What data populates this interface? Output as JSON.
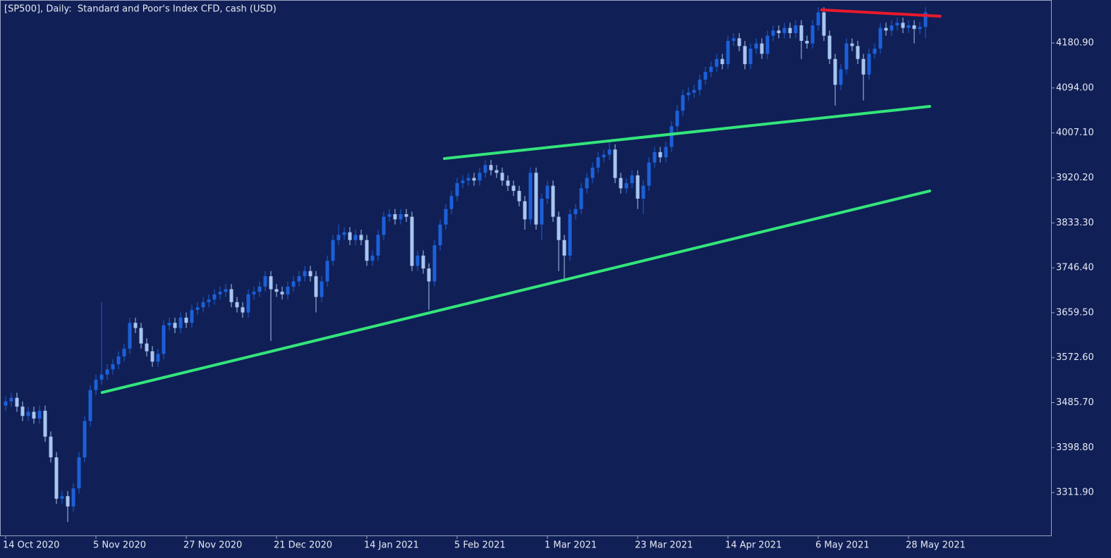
{
  "chart_data": {
    "type": "candlestick",
    "title": "[SP500], Daily:  Standard and Poor's Index CFD, cash (USD)",
    "up_color": "#1c60d8",
    "down_color": "#a8c6f0",
    "categories": [
      "14 Oct 2020",
      null,
      null,
      null,
      null,
      null,
      null,
      null,
      null,
      null,
      null,
      null,
      null,
      null,
      null,
      null,
      "5 Nov 2020",
      null,
      null,
      null,
      null,
      null,
      null,
      null,
      null,
      null,
      null,
      null,
      null,
      null,
      null,
      null,
      "27 Nov 2020",
      null,
      null,
      null,
      null,
      null,
      null,
      null,
      null,
      null,
      null,
      null,
      null,
      null,
      null,
      null,
      "21 Dec 2020",
      null,
      null,
      null,
      null,
      null,
      null,
      null,
      null,
      null,
      null,
      null,
      null,
      null,
      null,
      null,
      "14 Jan 2021",
      null,
      null,
      null,
      null,
      null,
      null,
      null,
      null,
      null,
      null,
      null,
      null,
      null,
      null,
      null,
      "5 Feb 2021",
      null,
      null,
      null,
      null,
      null,
      null,
      null,
      null,
      null,
      null,
      null,
      null,
      null,
      null,
      null,
      "1 Mar 2021",
      null,
      null,
      null,
      null,
      null,
      null,
      null,
      null,
      null,
      null,
      null,
      null,
      null,
      null,
      null,
      "23 Mar 2021",
      null,
      null,
      null,
      null,
      null,
      null,
      null,
      null,
      null,
      null,
      null,
      null,
      null,
      null,
      null,
      "14 Apr 2021",
      null,
      null,
      null,
      null,
      null,
      null,
      null,
      null,
      null,
      null,
      null,
      null,
      null,
      null,
      null,
      "6 May 2021",
      null,
      null,
      null,
      null,
      null,
      null,
      null,
      null,
      null,
      null,
      null,
      null,
      null,
      null,
      null,
      "28 May 2021",
      null,
      null,
      null
    ],
    "ohlc": {
      "open": [
        3480,
        3488,
        3495,
        3478,
        3460,
        3468,
        3455,
        3470,
        3420,
        3380,
        3300,
        3305,
        3285,
        3320,
        3380,
        3450,
        3510,
        3530,
        3540,
        3550,
        3560,
        3575,
        3590,
        3640,
        3630,
        3600,
        3585,
        3565,
        3580,
        3635,
        3640,
        3630,
        3650,
        3640,
        3665,
        3670,
        3680,
        3685,
        3695,
        3700,
        3705,
        3680,
        3670,
        3660,
        3695,
        3700,
        3710,
        3730,
        3705,
        3700,
        3695,
        3710,
        3720,
        3730,
        3740,
        3730,
        3690,
        3720,
        3760,
        3800,
        3810,
        3815,
        3800,
        3810,
        3800,
        3760,
        3770,
        3810,
        3845,
        3850,
        3840,
        3850,
        3845,
        3750,
        3770,
        3745,
        3720,
        3790,
        3830,
        3860,
        3885,
        3910,
        3915,
        3920,
        3915,
        3930,
        3945,
        3935,
        3930,
        3915,
        3905,
        3895,
        3875,
        3840,
        3930,
        3830,
        3880,
        3905,
        3845,
        3800,
        3770,
        3850,
        3860,
        3900,
        3920,
        3940,
        3960,
        3965,
        3975,
        3920,
        3900,
        3910,
        3925,
        3880,
        3905,
        3950,
        3970,
        3960,
        3980,
        4020,
        4050,
        4080,
        4085,
        4090,
        4110,
        4125,
        4135,
        4150,
        4140,
        4185,
        4190,
        4175,
        4140,
        4170,
        4180,
        4160,
        4195,
        4205,
        4200,
        4210,
        4200,
        4215,
        4185,
        4180,
        4215,
        4240,
        4195,
        4150,
        4100,
        4130,
        4180,
        4175,
        4150,
        4120,
        4160,
        4170,
        4210,
        4205,
        4215,
        4220,
        4210,
        4215,
        4208,
        4212
      ],
      "high": [
        3498,
        3505,
        3505,
        3488,
        3478,
        3478,
        3480,
        3480,
        3430,
        3390,
        3315,
        3315,
        3330,
        3390,
        3460,
        3520,
        3540,
        3680,
        3560,
        3570,
        3585,
        3600,
        3650,
        3650,
        3640,
        3610,
        3595,
        3590,
        3645,
        3650,
        3650,
        3660,
        3660,
        3675,
        3680,
        3690,
        3695,
        3705,
        3710,
        3715,
        3715,
        3690,
        3680,
        3705,
        3710,
        3720,
        3740,
        3740,
        3715,
        3710,
        3720,
        3730,
        3740,
        3750,
        3750,
        3740,
        3730,
        3770,
        3810,
        3830,
        3825,
        3825,
        3820,
        3820,
        3810,
        3780,
        3820,
        3855,
        3860,
        3860,
        3860,
        3860,
        3855,
        3780,
        3780,
        3755,
        3800,
        3840,
        3870,
        3895,
        3920,
        3925,
        3930,
        3930,
        3940,
        3955,
        3955,
        3945,
        3940,
        3925,
        3915,
        3905,
        3885,
        3940,
        3940,
        3890,
        3915,
        3915,
        3855,
        3810,
        3860,
        3870,
        3910,
        3930,
        3950,
        3970,
        3975,
        3990,
        3985,
        3930,
        3920,
        3935,
        3935,
        3915,
        3960,
        3980,
        3980,
        3990,
        4030,
        4060,
        4090,
        4095,
        4100,
        4120,
        4135,
        4145,
        4160,
        4160,
        4195,
        4200,
        4200,
        4185,
        4180,
        4190,
        4190,
        4205,
        4215,
        4215,
        4220,
        4220,
        4225,
        4225,
        4195,
        4225,
        4250,
        4250,
        4205,
        4160,
        4140,
        4190,
        4190,
        4185,
        4160,
        4170,
        4180,
        4220,
        4220,
        4225,
        4230,
        4230,
        4225,
        4225,
        4222,
        4250
      ],
      "low": [
        3470,
        3478,
        3468,
        3450,
        3450,
        3445,
        3445,
        3410,
        3370,
        3290,
        3290,
        3255,
        3275,
        3310,
        3370,
        3440,
        3500,
        3520,
        3530,
        3540,
        3550,
        3565,
        3580,
        3620,
        3590,
        3575,
        3555,
        3555,
        3570,
        3625,
        3620,
        3620,
        3630,
        3630,
        3655,
        3660,
        3670,
        3675,
        3685,
        3690,
        3670,
        3660,
        3650,
        3650,
        3685,
        3690,
        3700,
        3605,
        3690,
        3685,
        3685,
        3700,
        3710,
        3720,
        3720,
        3660,
        3680,
        3710,
        3750,
        3790,
        3800,
        3790,
        3790,
        3790,
        3750,
        3750,
        3760,
        3800,
        3835,
        3830,
        3830,
        3835,
        3740,
        3740,
        3735,
        3665,
        3710,
        3780,
        3820,
        3850,
        3875,
        3900,
        3905,
        3905,
        3905,
        3920,
        3925,
        3920,
        3905,
        3895,
        3885,
        3865,
        3820,
        3830,
        3820,
        3800,
        3870,
        3835,
        3740,
        3725,
        3760,
        3840,
        3850,
        3890,
        3910,
        3930,
        3950,
        3955,
        3910,
        3890,
        3890,
        3900,
        3860,
        3850,
        3895,
        3940,
        3950,
        3950,
        3970,
        4010,
        4040,
        4070,
        4075,
        4080,
        4100,
        4115,
        4125,
        4130,
        4130,
        4175,
        4165,
        4130,
        4130,
        4160,
        4150,
        4150,
        4185,
        4190,
        4190,
        4190,
        4190,
        4150,
        4170,
        4170,
        4205,
        4185,
        4140,
        4060,
        4090,
        4120,
        4165,
        4140,
        4070,
        4110,
        4150,
        4160,
        4195,
        4195,
        4205,
        4200,
        4200,
        4180,
        4198,
        4190
      ],
      "close": [
        3488,
        3495,
        3478,
        3460,
        3468,
        3455,
        3470,
        3420,
        3380,
        3300,
        3305,
        3285,
        3320,
        3380,
        3450,
        3510,
        3530,
        3540,
        3550,
        3560,
        3575,
        3590,
        3640,
        3630,
        3600,
        3585,
        3565,
        3580,
        3635,
        3640,
        3630,
        3650,
        3640,
        3665,
        3670,
        3680,
        3685,
        3695,
        3700,
        3705,
        3680,
        3670,
        3660,
        3695,
        3700,
        3710,
        3730,
        3705,
        3700,
        3695,
        3710,
        3720,
        3730,
        3740,
        3730,
        3690,
        3720,
        3760,
        3800,
        3810,
        3815,
        3800,
        3810,
        3800,
        3760,
        3770,
        3810,
        3845,
        3850,
        3840,
        3850,
        3845,
        3750,
        3770,
        3745,
        3720,
        3790,
        3830,
        3860,
        3885,
        3910,
        3915,
        3920,
        3915,
        3930,
        3945,
        3935,
        3930,
        3915,
        3905,
        3895,
        3875,
        3840,
        3930,
        3830,
        3880,
        3905,
        3845,
        3800,
        3770,
        3850,
        3860,
        3900,
        3920,
        3940,
        3960,
        3965,
        3975,
        3920,
        3900,
        3910,
        3925,
        3880,
        3905,
        3950,
        3970,
        3960,
        3980,
        4020,
        4050,
        4080,
        4085,
        4090,
        4110,
        4125,
        4135,
        4150,
        4140,
        4185,
        4190,
        4175,
        4140,
        4170,
        4180,
        4160,
        4195,
        4205,
        4200,
        4210,
        4200,
        4215,
        4185,
        4180,
        4215,
        4240,
        4195,
        4150,
        4100,
        4130,
        4180,
        4175,
        4150,
        4120,
        4160,
        4170,
        4210,
        4205,
        4215,
        4220,
        4210,
        4215,
        4208,
        4212,
        4240
      ]
    },
    "ylim": [
      3229,
      4264
    ],
    "yticks": [
      {
        "value": 3311.9,
        "label": "3311.90"
      },
      {
        "value": 3398.8,
        "label": "3398.80"
      },
      {
        "value": 3485.7,
        "label": "3485.70"
      },
      {
        "value": 3572.6,
        "label": "3572.60"
      },
      {
        "value": 3659.5,
        "label": "3659.50"
      },
      {
        "value": 3746.4,
        "label": "3746.40"
      },
      {
        "value": 3833.3,
        "label": "3833.30"
      },
      {
        "value": 3920.2,
        "label": "3920.20"
      },
      {
        "value": 4007.1,
        "label": "4007.10"
      },
      {
        "value": 4094,
        "label": "4094.00"
      },
      {
        "value": 4180.9,
        "label": "4180.90"
      }
    ],
    "trendlines": [
      {
        "color": "#e8192c",
        "x": [
          144.6,
          165.6
        ],
        "y": [
          4244.9,
          4232.6
        ]
      },
      {
        "color": "#33e57b",
        "x": [
          77.75,
          163.75
        ],
        "y": [
          3957.5,
          4058.3
        ]
      },
      {
        "color": "#33e57b",
        "x": [
          17.1,
          163.75
        ],
        "y": [
          3505.3,
          3894.9
        ]
      }
    ]
  }
}
